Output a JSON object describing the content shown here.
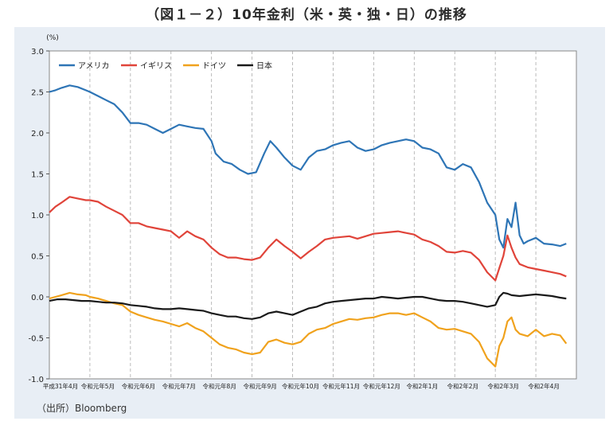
{
  "title": "（図１－２）10年金利（米・英・独・日）の推移",
  "source": "（出所）Bloomberg",
  "chart_data": {
    "type": "line",
    "y_unit": "(%)",
    "ylim": [
      -1.0,
      3.0
    ],
    "y_ticks": [
      "3.0",
      "2.5",
      "2.0",
      "1.5",
      "1.0",
      "0.5",
      "0.0",
      "-0.5",
      "-1.0"
    ],
    "x_tick_labels": [
      "平成31年4月",
      "令和元年5月",
      "令和元年6月",
      "令和元年7月",
      "令和元年8月",
      "令和元年9月",
      "令和元年10月",
      "令和元年11月",
      "令和元年12月",
      "令和2年1月",
      "令和2年2月",
      "令和2年3月",
      "令和2年4月"
    ],
    "grid": "vertical dashed at month boundaries",
    "legend_position": "top-left",
    "series": [
      {
        "name": "アメリカ",
        "color": "#2e75b6",
        "values": [
          [
            0,
            2.5
          ],
          [
            0.15,
            2.52
          ],
          [
            0.3,
            2.55
          ],
          [
            0.5,
            2.58
          ],
          [
            0.7,
            2.56
          ],
          [
            0.9,
            2.52
          ],
          [
            1.0,
            2.5
          ],
          [
            1.2,
            2.45
          ],
          [
            1.4,
            2.4
          ],
          [
            1.6,
            2.35
          ],
          [
            1.8,
            2.25
          ],
          [
            2.0,
            2.12
          ],
          [
            2.2,
            2.12
          ],
          [
            2.4,
            2.1
          ],
          [
            2.6,
            2.05
          ],
          [
            2.8,
            2.0
          ],
          [
            3.0,
            2.05
          ],
          [
            3.2,
            2.1
          ],
          [
            3.4,
            2.08
          ],
          [
            3.6,
            2.06
          ],
          [
            3.8,
            2.05
          ],
          [
            4.0,
            1.9
          ],
          [
            4.1,
            1.75
          ],
          [
            4.3,
            1.65
          ],
          [
            4.5,
            1.62
          ],
          [
            4.7,
            1.55
          ],
          [
            4.9,
            1.5
          ],
          [
            5.1,
            1.52
          ],
          [
            5.3,
            1.75
          ],
          [
            5.45,
            1.9
          ],
          [
            5.6,
            1.82
          ],
          [
            5.8,
            1.7
          ],
          [
            6.0,
            1.6
          ],
          [
            6.2,
            1.55
          ],
          [
            6.4,
            1.7
          ],
          [
            6.6,
            1.78
          ],
          [
            6.8,
            1.8
          ],
          [
            7.0,
            1.85
          ],
          [
            7.2,
            1.88
          ],
          [
            7.4,
            1.9
          ],
          [
            7.6,
            1.82
          ],
          [
            7.8,
            1.78
          ],
          [
            8.0,
            1.8
          ],
          [
            8.2,
            1.85
          ],
          [
            8.4,
            1.88
          ],
          [
            8.6,
            1.9
          ],
          [
            8.8,
            1.92
          ],
          [
            9.0,
            1.9
          ],
          [
            9.2,
            1.82
          ],
          [
            9.4,
            1.8
          ],
          [
            9.6,
            1.75
          ],
          [
            9.8,
            1.58
          ],
          [
            10.0,
            1.55
          ],
          [
            10.2,
            1.62
          ],
          [
            10.4,
            1.58
          ],
          [
            10.6,
            1.4
          ],
          [
            10.8,
            1.15
          ],
          [
            11.0,
            1.0
          ],
          [
            11.1,
            0.7
          ],
          [
            11.2,
            0.6
          ],
          [
            11.3,
            0.95
          ],
          [
            11.4,
            0.85
          ],
          [
            11.5,
            1.15
          ],
          [
            11.6,
            0.75
          ],
          [
            11.7,
            0.65
          ],
          [
            11.8,
            0.68
          ],
          [
            12.0,
            0.72
          ],
          [
            12.2,
            0.65
          ],
          [
            12.4,
            0.64
          ],
          [
            12.6,
            0.62
          ],
          [
            12.75,
            0.65
          ]
        ]
      },
      {
        "name": "イギリス",
        "color": "#e0443a",
        "values": [
          [
            0,
            1.03
          ],
          [
            0.15,
            1.1
          ],
          [
            0.3,
            1.15
          ],
          [
            0.5,
            1.22
          ],
          [
            0.7,
            1.2
          ],
          [
            0.9,
            1.18
          ],
          [
            1.0,
            1.18
          ],
          [
            1.2,
            1.16
          ],
          [
            1.4,
            1.1
          ],
          [
            1.6,
            1.05
          ],
          [
            1.8,
            1.0
          ],
          [
            2.0,
            0.9
          ],
          [
            2.2,
            0.9
          ],
          [
            2.4,
            0.86
          ],
          [
            2.6,
            0.84
          ],
          [
            2.8,
            0.82
          ],
          [
            3.0,
            0.8
          ],
          [
            3.2,
            0.72
          ],
          [
            3.4,
            0.8
          ],
          [
            3.6,
            0.74
          ],
          [
            3.8,
            0.7
          ],
          [
            4.0,
            0.6
          ],
          [
            4.2,
            0.52
          ],
          [
            4.4,
            0.48
          ],
          [
            4.6,
            0.48
          ],
          [
            4.8,
            0.46
          ],
          [
            5.0,
            0.45
          ],
          [
            5.2,
            0.48
          ],
          [
            5.4,
            0.6
          ],
          [
            5.6,
            0.7
          ],
          [
            5.8,
            0.62
          ],
          [
            6.0,
            0.55
          ],
          [
            6.2,
            0.47
          ],
          [
            6.4,
            0.55
          ],
          [
            6.6,
            0.62
          ],
          [
            6.8,
            0.7
          ],
          [
            7.0,
            0.72
          ],
          [
            7.2,
            0.73
          ],
          [
            7.4,
            0.74
          ],
          [
            7.6,
            0.71
          ],
          [
            7.8,
            0.74
          ],
          [
            8.0,
            0.77
          ],
          [
            8.2,
            0.78
          ],
          [
            8.4,
            0.79
          ],
          [
            8.6,
            0.8
          ],
          [
            8.8,
            0.78
          ],
          [
            9.0,
            0.76
          ],
          [
            9.2,
            0.7
          ],
          [
            9.4,
            0.67
          ],
          [
            9.6,
            0.62
          ],
          [
            9.8,
            0.55
          ],
          [
            10.0,
            0.54
          ],
          [
            10.2,
            0.56
          ],
          [
            10.4,
            0.54
          ],
          [
            10.6,
            0.45
          ],
          [
            10.8,
            0.3
          ],
          [
            11.0,
            0.2
          ],
          [
            11.1,
            0.35
          ],
          [
            11.2,
            0.5
          ],
          [
            11.3,
            0.75
          ],
          [
            11.4,
            0.6
          ],
          [
            11.5,
            0.48
          ],
          [
            11.6,
            0.4
          ],
          [
            11.8,
            0.36
          ],
          [
            12.0,
            0.34
          ],
          [
            12.2,
            0.32
          ],
          [
            12.4,
            0.3
          ],
          [
            12.6,
            0.28
          ],
          [
            12.75,
            0.25
          ]
        ]
      },
      {
        "name": "ドイツ",
        "color": "#f0a21d",
        "values": [
          [
            0,
            -0.02
          ],
          [
            0.15,
            0.0
          ],
          [
            0.3,
            0.02
          ],
          [
            0.5,
            0.05
          ],
          [
            0.7,
            0.03
          ],
          [
            0.9,
            0.02
          ],
          [
            1.0,
            0.0
          ],
          [
            1.2,
            -0.02
          ],
          [
            1.4,
            -0.05
          ],
          [
            1.6,
            -0.08
          ],
          [
            1.8,
            -0.1
          ],
          [
            2.0,
            -0.18
          ],
          [
            2.2,
            -0.22
          ],
          [
            2.4,
            -0.25
          ],
          [
            2.6,
            -0.28
          ],
          [
            2.8,
            -0.3
          ],
          [
            3.0,
            -0.33
          ],
          [
            3.2,
            -0.36
          ],
          [
            3.4,
            -0.32
          ],
          [
            3.6,
            -0.38
          ],
          [
            3.8,
            -0.42
          ],
          [
            4.0,
            -0.5
          ],
          [
            4.2,
            -0.58
          ],
          [
            4.4,
            -0.62
          ],
          [
            4.6,
            -0.64
          ],
          [
            4.8,
            -0.68
          ],
          [
            5.0,
            -0.7
          ],
          [
            5.2,
            -0.68
          ],
          [
            5.4,
            -0.55
          ],
          [
            5.6,
            -0.52
          ],
          [
            5.8,
            -0.56
          ],
          [
            6.0,
            -0.58
          ],
          [
            6.2,
            -0.55
          ],
          [
            6.4,
            -0.45
          ],
          [
            6.6,
            -0.4
          ],
          [
            6.8,
            -0.38
          ],
          [
            7.0,
            -0.33
          ],
          [
            7.2,
            -0.3
          ],
          [
            7.4,
            -0.27
          ],
          [
            7.6,
            -0.28
          ],
          [
            7.8,
            -0.26
          ],
          [
            8.0,
            -0.25
          ],
          [
            8.2,
            -0.22
          ],
          [
            8.4,
            -0.2
          ],
          [
            8.6,
            -0.2
          ],
          [
            8.8,
            -0.22
          ],
          [
            9.0,
            -0.2
          ],
          [
            9.2,
            -0.25
          ],
          [
            9.4,
            -0.3
          ],
          [
            9.6,
            -0.38
          ],
          [
            9.8,
            -0.4
          ],
          [
            10.0,
            -0.39
          ],
          [
            10.2,
            -0.42
          ],
          [
            10.4,
            -0.45
          ],
          [
            10.6,
            -0.55
          ],
          [
            10.8,
            -0.75
          ],
          [
            11.0,
            -0.85
          ],
          [
            11.1,
            -0.6
          ],
          [
            11.2,
            -0.5
          ],
          [
            11.3,
            -0.3
          ],
          [
            11.4,
            -0.25
          ],
          [
            11.5,
            -0.4
          ],
          [
            11.6,
            -0.45
          ],
          [
            11.8,
            -0.48
          ],
          [
            12.0,
            -0.4
          ],
          [
            12.2,
            -0.48
          ],
          [
            12.4,
            -0.45
          ],
          [
            12.6,
            -0.47
          ],
          [
            12.75,
            -0.57
          ]
        ]
      },
      {
        "name": "日本",
        "color": "#1a1a1a",
        "values": [
          [
            0,
            -0.05
          ],
          [
            0.2,
            -0.03
          ],
          [
            0.4,
            -0.03
          ],
          [
            0.6,
            -0.04
          ],
          [
            0.8,
            -0.05
          ],
          [
            1.0,
            -0.05
          ],
          [
            1.2,
            -0.06
          ],
          [
            1.4,
            -0.07
          ],
          [
            1.6,
            -0.07
          ],
          [
            1.8,
            -0.08
          ],
          [
            2.0,
            -0.1
          ],
          [
            2.2,
            -0.11
          ],
          [
            2.4,
            -0.12
          ],
          [
            2.6,
            -0.14
          ],
          [
            2.8,
            -0.15
          ],
          [
            3.0,
            -0.15
          ],
          [
            3.2,
            -0.14
          ],
          [
            3.4,
            -0.15
          ],
          [
            3.6,
            -0.16
          ],
          [
            3.8,
            -0.17
          ],
          [
            4.0,
            -0.2
          ],
          [
            4.2,
            -0.22
          ],
          [
            4.4,
            -0.24
          ],
          [
            4.6,
            -0.24
          ],
          [
            4.8,
            -0.26
          ],
          [
            5.0,
            -0.27
          ],
          [
            5.2,
            -0.25
          ],
          [
            5.4,
            -0.2
          ],
          [
            5.6,
            -0.18
          ],
          [
            5.8,
            -0.2
          ],
          [
            6.0,
            -0.22
          ],
          [
            6.2,
            -0.18
          ],
          [
            6.4,
            -0.14
          ],
          [
            6.6,
            -0.12
          ],
          [
            6.8,
            -0.08
          ],
          [
            7.0,
            -0.06
          ],
          [
            7.2,
            -0.05
          ],
          [
            7.4,
            -0.04
          ],
          [
            7.6,
            -0.03
          ],
          [
            7.8,
            -0.02
          ],
          [
            8.0,
            -0.02
          ],
          [
            8.2,
            0.0
          ],
          [
            8.4,
            -0.01
          ],
          [
            8.6,
            -0.02
          ],
          [
            8.8,
            -0.01
          ],
          [
            9.0,
            0.0
          ],
          [
            9.2,
            0.0
          ],
          [
            9.4,
            -0.02
          ],
          [
            9.6,
            -0.04
          ],
          [
            9.8,
            -0.05
          ],
          [
            10.0,
            -0.05
          ],
          [
            10.2,
            -0.06
          ],
          [
            10.4,
            -0.08
          ],
          [
            10.6,
            -0.1
          ],
          [
            10.8,
            -0.12
          ],
          [
            11.0,
            -0.1
          ],
          [
            11.1,
            0.0
          ],
          [
            11.2,
            0.05
          ],
          [
            11.3,
            0.04
          ],
          [
            11.4,
            0.02
          ],
          [
            11.6,
            0.01
          ],
          [
            11.8,
            0.02
          ],
          [
            12.0,
            0.03
          ],
          [
            12.2,
            0.02
          ],
          [
            12.4,
            0.01
          ],
          [
            12.6,
            -0.01
          ],
          [
            12.75,
            -0.02
          ]
        ]
      }
    ]
  }
}
